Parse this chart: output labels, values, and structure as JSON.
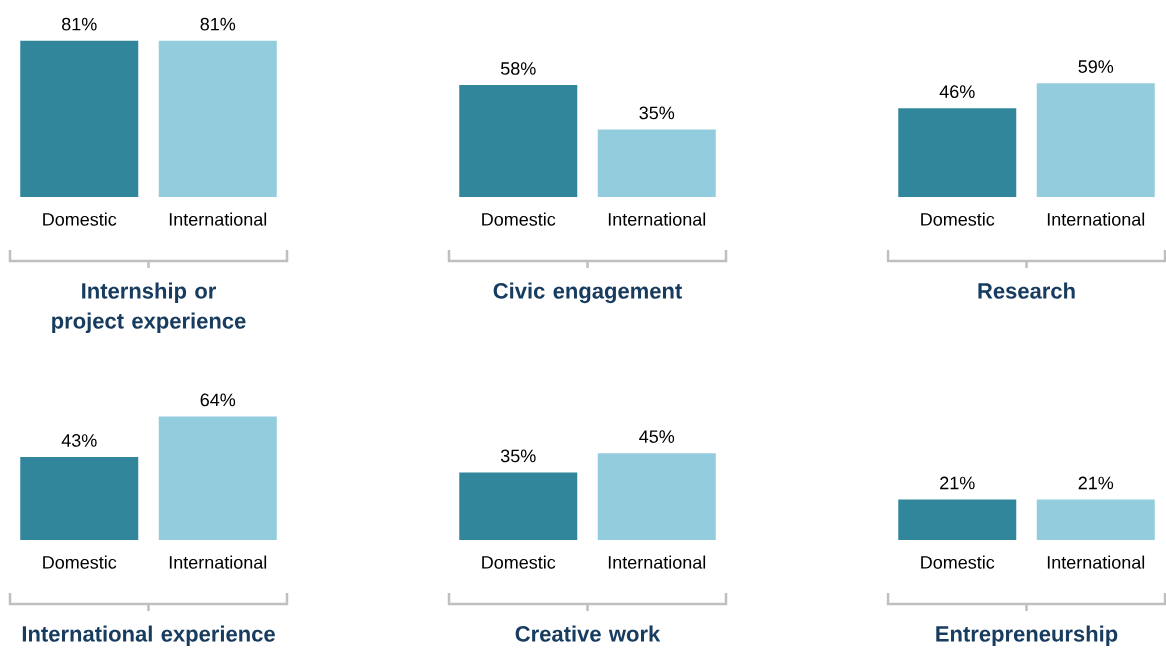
{
  "chart_data": [
    {
      "type": "bar",
      "title": "Internship or project experience",
      "categories": [
        "Domestic",
        "International"
      ],
      "values": [
        81,
        81
      ],
      "value_labels": [
        "81%",
        "81%"
      ],
      "colors": [
        "#31869b",
        "#93cddd"
      ]
    },
    {
      "type": "bar",
      "title": "Civic engagement",
      "categories": [
        "Domestic",
        "International"
      ],
      "values": [
        58,
        35
      ],
      "value_labels": [
        "58%",
        "35%"
      ],
      "colors": [
        "#31869b",
        "#93cddd"
      ]
    },
    {
      "type": "bar",
      "title": "Research",
      "categories": [
        "Domestic",
        "International"
      ],
      "values": [
        46,
        59
      ],
      "value_labels": [
        "46%",
        "59%"
      ],
      "colors": [
        "#31869b",
        "#93cddd"
      ]
    },
    {
      "type": "bar",
      "title": "International experience",
      "categories": [
        "Domestic",
        "International"
      ],
      "values": [
        43,
        64
      ],
      "value_labels": [
        "43%",
        "64%"
      ],
      "colors": [
        "#31869b",
        "#93cddd"
      ]
    },
    {
      "type": "bar",
      "title": "Creative work",
      "categories": [
        "Domestic",
        "International"
      ],
      "values": [
        35,
        45
      ],
      "value_labels": [
        "35%",
        "45%"
      ],
      "colors": [
        "#31869b",
        "#93cddd"
      ]
    },
    {
      "type": "bar",
      "title": "Entrepreneurship",
      "categories": [
        "Domestic",
        "International"
      ],
      "values": [
        21,
        21
      ],
      "value_labels": [
        "21%",
        "21%"
      ],
      "colors": [
        "#31869b",
        "#93cddd"
      ]
    }
  ]
}
